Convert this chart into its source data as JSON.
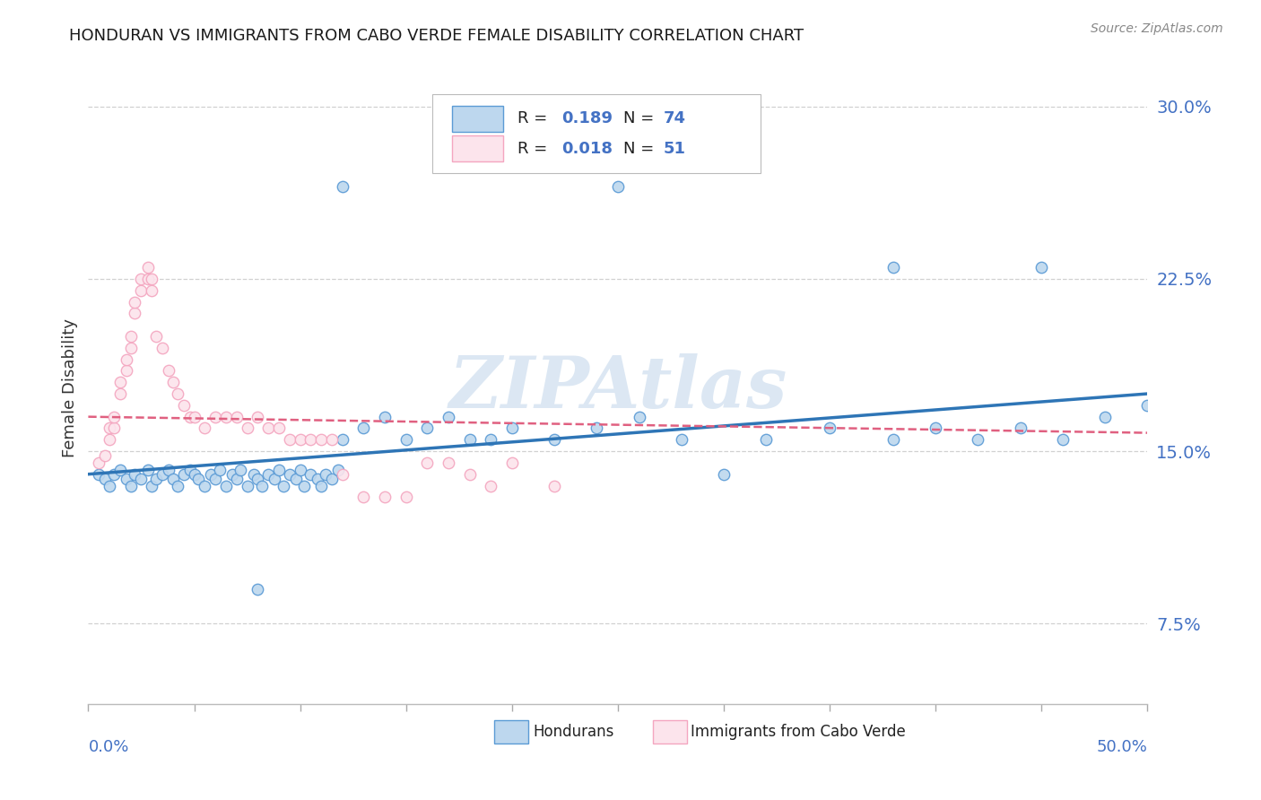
{
  "title": "HONDURAN VS IMMIGRANTS FROM CABO VERDE FEMALE DISABILITY CORRELATION CHART",
  "source_text": "Source: ZipAtlas.com",
  "ylabel": "Female Disability",
  "xlim": [
    0.0,
    0.5
  ],
  "ylim": [
    0.04,
    0.315
  ],
  "yticks": [
    0.075,
    0.15,
    0.225,
    0.3
  ],
  "ytick_labels": [
    "7.5%",
    "15.0%",
    "22.5%",
    "30.0%"
  ],
  "legend_r1": "R = 0.189",
  "legend_n1": "N = 74",
  "legend_r2": "R = 0.018",
  "legend_n2": "N = 51",
  "color_blue": "#5b9bd5",
  "color_pink": "#f4a6c0",
  "color_blue_fill": "#bdd7ee",
  "color_pink_fill": "#fce4ec",
  "color_blue_line": "#2e75b6",
  "color_pink_line": "#e06080",
  "watermark": "ZIPAtlas",
  "watermark_color": "#c5d8ec",
  "title_color": "#1a1a1a",
  "axis_label_color": "#4472c4",
  "grid_color": "#cccccc",
  "background_color": "#ffffff",
  "blue_dots_x": [
    0.005,
    0.008,
    0.01,
    0.012,
    0.015,
    0.018,
    0.02,
    0.022,
    0.025,
    0.028,
    0.03,
    0.032,
    0.035,
    0.038,
    0.04,
    0.042,
    0.045,
    0.048,
    0.05,
    0.052,
    0.055,
    0.058,
    0.06,
    0.062,
    0.065,
    0.068,
    0.07,
    0.072,
    0.075,
    0.078,
    0.08,
    0.082,
    0.085,
    0.088,
    0.09,
    0.092,
    0.095,
    0.098,
    0.1,
    0.102,
    0.105,
    0.108,
    0.11,
    0.112,
    0.115,
    0.118,
    0.12,
    0.13,
    0.14,
    0.15,
    0.16,
    0.17,
    0.18,
    0.19,
    0.2,
    0.22,
    0.24,
    0.26,
    0.28,
    0.3,
    0.32,
    0.35,
    0.38,
    0.4,
    0.42,
    0.44,
    0.46,
    0.48,
    0.5,
    0.12,
    0.25,
    0.38,
    0.45,
    0.08
  ],
  "blue_dots_y": [
    0.14,
    0.138,
    0.135,
    0.14,
    0.142,
    0.138,
    0.135,
    0.14,
    0.138,
    0.142,
    0.135,
    0.138,
    0.14,
    0.142,
    0.138,
    0.135,
    0.14,
    0.142,
    0.14,
    0.138,
    0.135,
    0.14,
    0.138,
    0.142,
    0.135,
    0.14,
    0.138,
    0.142,
    0.135,
    0.14,
    0.138,
    0.135,
    0.14,
    0.138,
    0.142,
    0.135,
    0.14,
    0.138,
    0.142,
    0.135,
    0.14,
    0.138,
    0.135,
    0.14,
    0.138,
    0.142,
    0.155,
    0.16,
    0.165,
    0.155,
    0.16,
    0.165,
    0.155,
    0.155,
    0.16,
    0.155,
    0.16,
    0.165,
    0.155,
    0.14,
    0.155,
    0.16,
    0.155,
    0.16,
    0.155,
    0.16,
    0.155,
    0.165,
    0.17,
    0.265,
    0.265,
    0.23,
    0.23,
    0.09
  ],
  "pink_dots_x": [
    0.005,
    0.008,
    0.01,
    0.01,
    0.012,
    0.012,
    0.015,
    0.015,
    0.018,
    0.018,
    0.02,
    0.02,
    0.022,
    0.022,
    0.025,
    0.025,
    0.028,
    0.028,
    0.03,
    0.03,
    0.032,
    0.035,
    0.038,
    0.04,
    0.042,
    0.045,
    0.048,
    0.05,
    0.055,
    0.06,
    0.065,
    0.07,
    0.075,
    0.08,
    0.085,
    0.09,
    0.095,
    0.1,
    0.105,
    0.11,
    0.115,
    0.12,
    0.13,
    0.14,
    0.15,
    0.16,
    0.17,
    0.18,
    0.19,
    0.2,
    0.22
  ],
  "pink_dots_y": [
    0.145,
    0.148,
    0.155,
    0.16,
    0.16,
    0.165,
    0.175,
    0.18,
    0.185,
    0.19,
    0.195,
    0.2,
    0.21,
    0.215,
    0.22,
    0.225,
    0.225,
    0.23,
    0.225,
    0.22,
    0.2,
    0.195,
    0.185,
    0.18,
    0.175,
    0.17,
    0.165,
    0.165,
    0.16,
    0.165,
    0.165,
    0.165,
    0.16,
    0.165,
    0.16,
    0.16,
    0.155,
    0.155,
    0.155,
    0.155,
    0.155,
    0.14,
    0.13,
    0.13,
    0.13,
    0.145,
    0.145,
    0.14,
    0.135,
    0.145,
    0.135
  ]
}
